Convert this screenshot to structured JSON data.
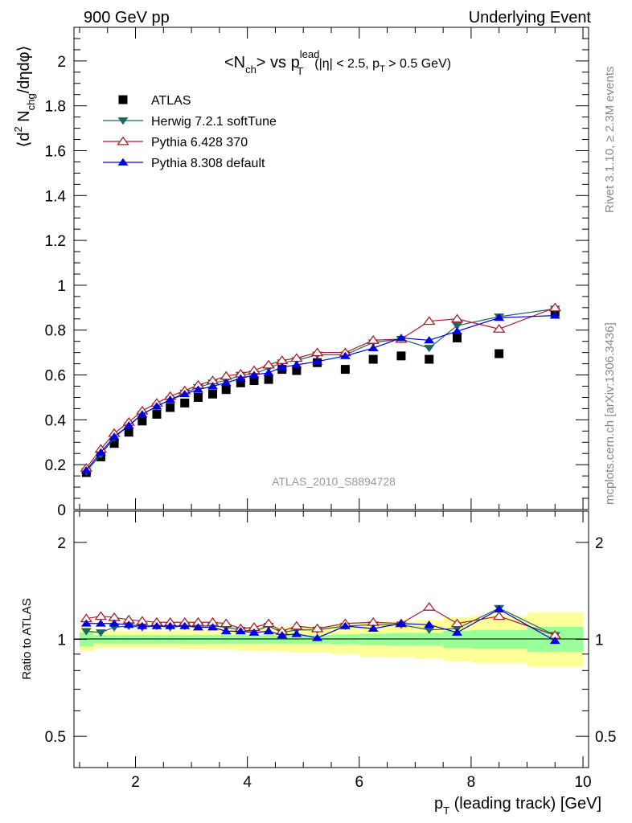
{
  "header": {
    "left": "900 GeV pp",
    "right": "Underlying Event"
  },
  "side_text": {
    "rivet": "Rivet 3.1.10, ≥ 2.3M events",
    "mcplots": "mcplots.cern.ch [arXiv:1306.3436]"
  },
  "chart_data": [
    {
      "type": "scatter",
      "panel": "main",
      "title_parts": {
        "a": "<N",
        "a_sub": "ch",
        "b": "> vs p",
        "b_sup": "lead",
        "b_sub": "T",
        "cut_open": "(|η| < 2.5, p",
        "cut_sub": "T",
        "cut_close": " > 0.5 GeV)"
      },
      "ylabel_parts": {
        "open": "⟨d",
        "sup": "2",
        "mid": " N",
        "sub": "chg",
        "close": "/dηdφ⟩"
      },
      "analysis_label": "ATLAS_2010_S8894728",
      "xlim": [
        0.9,
        10.1
      ],
      "ylim": [
        0,
        2.15
      ],
      "x_ticks": [
        2,
        4,
        6,
        8,
        10
      ],
      "y_ticks": [
        {
          "v": 0,
          "label": "0"
        },
        {
          "v": 0.2,
          "label": "0.2"
        },
        {
          "v": 0.4,
          "label": "0.4"
        },
        {
          "v": 0.6,
          "label": "0.6"
        },
        {
          "v": 0.8,
          "label": "0.8"
        },
        {
          "v": 1.0,
          "label": "1"
        },
        {
          "v": 1.2,
          "label": "1.2"
        },
        {
          "v": 1.4,
          "label": "1.4"
        },
        {
          "v": 1.6,
          "label": "1.6"
        },
        {
          "v": 1.8,
          "label": "1.8"
        },
        {
          "v": 2.0,
          "label": "2"
        }
      ],
      "legend_position": "top-left",
      "x": [
        1.12,
        1.38,
        1.62,
        1.88,
        2.12,
        2.38,
        2.62,
        2.88,
        3.12,
        3.38,
        3.62,
        3.88,
        4.12,
        4.38,
        4.62,
        4.88,
        5.25,
        5.75,
        6.25,
        6.75,
        7.25,
        7.75,
        8.5,
        9.5
      ],
      "series": [
        {
          "name": "ATLAS",
          "color": "#000000",
          "marker": "square",
          "values": [
            0.165,
            0.235,
            0.295,
            0.345,
            0.395,
            0.425,
            0.455,
            0.475,
            0.5,
            0.515,
            0.535,
            0.565,
            0.575,
            0.58,
            0.625,
            0.62,
            0.655,
            0.625,
            0.67,
            0.685,
            0.67,
            0.765,
            0.695,
            0.88
          ]
        },
        {
          "name": "Herwig 7.2.1 softTune",
          "color": "#1e6464",
          "marker": "triangle-down",
          "values": [
            0.17,
            0.245,
            0.32,
            0.375,
            0.425,
            0.46,
            0.49,
            0.52,
            0.545,
            0.565,
            0.575,
            0.6,
            0.605,
            0.63,
            0.655,
            0.665,
            0.69,
            0.69,
            0.745,
            0.76,
            0.72,
            0.82,
            0.86,
            0.895
          ]
        },
        {
          "name": "Pythia 6.428 370",
          "color": "#aa1e28",
          "marker": "triangle-open",
          "values": [
            0.185,
            0.27,
            0.34,
            0.39,
            0.44,
            0.475,
            0.505,
            0.53,
            0.555,
            0.575,
            0.595,
            0.605,
            0.62,
            0.645,
            0.665,
            0.675,
            0.7,
            0.7,
            0.755,
            0.76,
            0.84,
            0.85,
            0.805,
            0.9
          ]
        },
        {
          "name": "Pythia 8.308 default",
          "color": "#0000dc",
          "marker": "triangle-up",
          "values": [
            0.175,
            0.255,
            0.325,
            0.375,
            0.425,
            0.46,
            0.49,
            0.515,
            0.535,
            0.55,
            0.565,
            0.585,
            0.6,
            0.61,
            0.635,
            0.645,
            0.66,
            0.685,
            0.72,
            0.765,
            0.755,
            0.795,
            0.855,
            0.865
          ]
        }
      ]
    },
    {
      "type": "scatter",
      "panel": "ratio",
      "ylabel": "Ratio to ATLAS",
      "xlabel_parts": {
        "main": "p",
        "sub": "T",
        "rest": " (leading track) [GeV]"
      },
      "scale": "log",
      "xlim": [
        0.9,
        10.1
      ],
      "ylim": [
        0.4,
        2.5
      ],
      "x_ticks": [
        2,
        4,
        6,
        8,
        10
      ],
      "y_ticks": [
        {
          "v": 0.5,
          "label": "0.5"
        },
        {
          "v": 1,
          "label": "1"
        },
        {
          "v": 2,
          "label": "2"
        }
      ],
      "band_x_edges": [
        1.0,
        1.25,
        1.5,
        1.75,
        2.0,
        2.25,
        2.5,
        2.75,
        3.0,
        3.25,
        3.5,
        3.75,
        4.0,
        4.25,
        4.5,
        4.75,
        5.0,
        5.5,
        6.0,
        6.5,
        7.0,
        7.5,
        8.0,
        9.0,
        10.0
      ],
      "band_green": [
        0.95,
        0.97,
        0.97,
        0.97,
        0.97,
        0.97,
        0.97,
        0.97,
        0.97,
        0.97,
        0.97,
        0.97,
        0.97,
        0.97,
        0.97,
        0.97,
        0.97,
        0.965,
        0.96,
        0.955,
        0.955,
        0.94,
        0.935,
        0.915
      ],
      "band_yellow": [
        0.92,
        0.94,
        0.94,
        0.94,
        0.94,
        0.94,
        0.94,
        0.935,
        0.935,
        0.93,
        0.93,
        0.925,
        0.92,
        0.92,
        0.915,
        0.91,
        0.91,
        0.9,
        0.885,
        0.88,
        0.87,
        0.855,
        0.845,
        0.825
      ],
      "series": [
        {
          "name": "Herwig 7.2.1 softTune",
          "color": "#1e6464",
          "marker": "triangle-down",
          "values": [
            1.06,
            1.05,
            1.09,
            1.1,
            1.09,
            1.1,
            1.09,
            1.1,
            1.1,
            1.1,
            1.09,
            1.07,
            1.06,
            1.1,
            1.05,
            1.07,
            1.07,
            1.1,
            1.11,
            1.11,
            1.07,
            1.08,
            1.25,
            1.03
          ]
        },
        {
          "name": "Pythia 6.428 370",
          "color": "#aa1e28",
          "marker": "triangle-open",
          "values": [
            1.16,
            1.18,
            1.17,
            1.15,
            1.14,
            1.13,
            1.13,
            1.13,
            1.13,
            1.13,
            1.12,
            1.08,
            1.09,
            1.12,
            1.06,
            1.1,
            1.08,
            1.12,
            1.13,
            1.12,
            1.26,
            1.12,
            1.18,
            1.03
          ]
        },
        {
          "name": "Pythia 8.308 default",
          "color": "#0000dc",
          "marker": "triangle-up",
          "values": [
            1.12,
            1.12,
            1.12,
            1.11,
            1.1,
            1.1,
            1.1,
            1.1,
            1.09,
            1.09,
            1.06,
            1.06,
            1.05,
            1.06,
            1.03,
            1.04,
            1.01,
            1.1,
            1.08,
            1.12,
            1.11,
            1.05,
            1.24,
            0.99
          ]
        }
      ]
    }
  ]
}
